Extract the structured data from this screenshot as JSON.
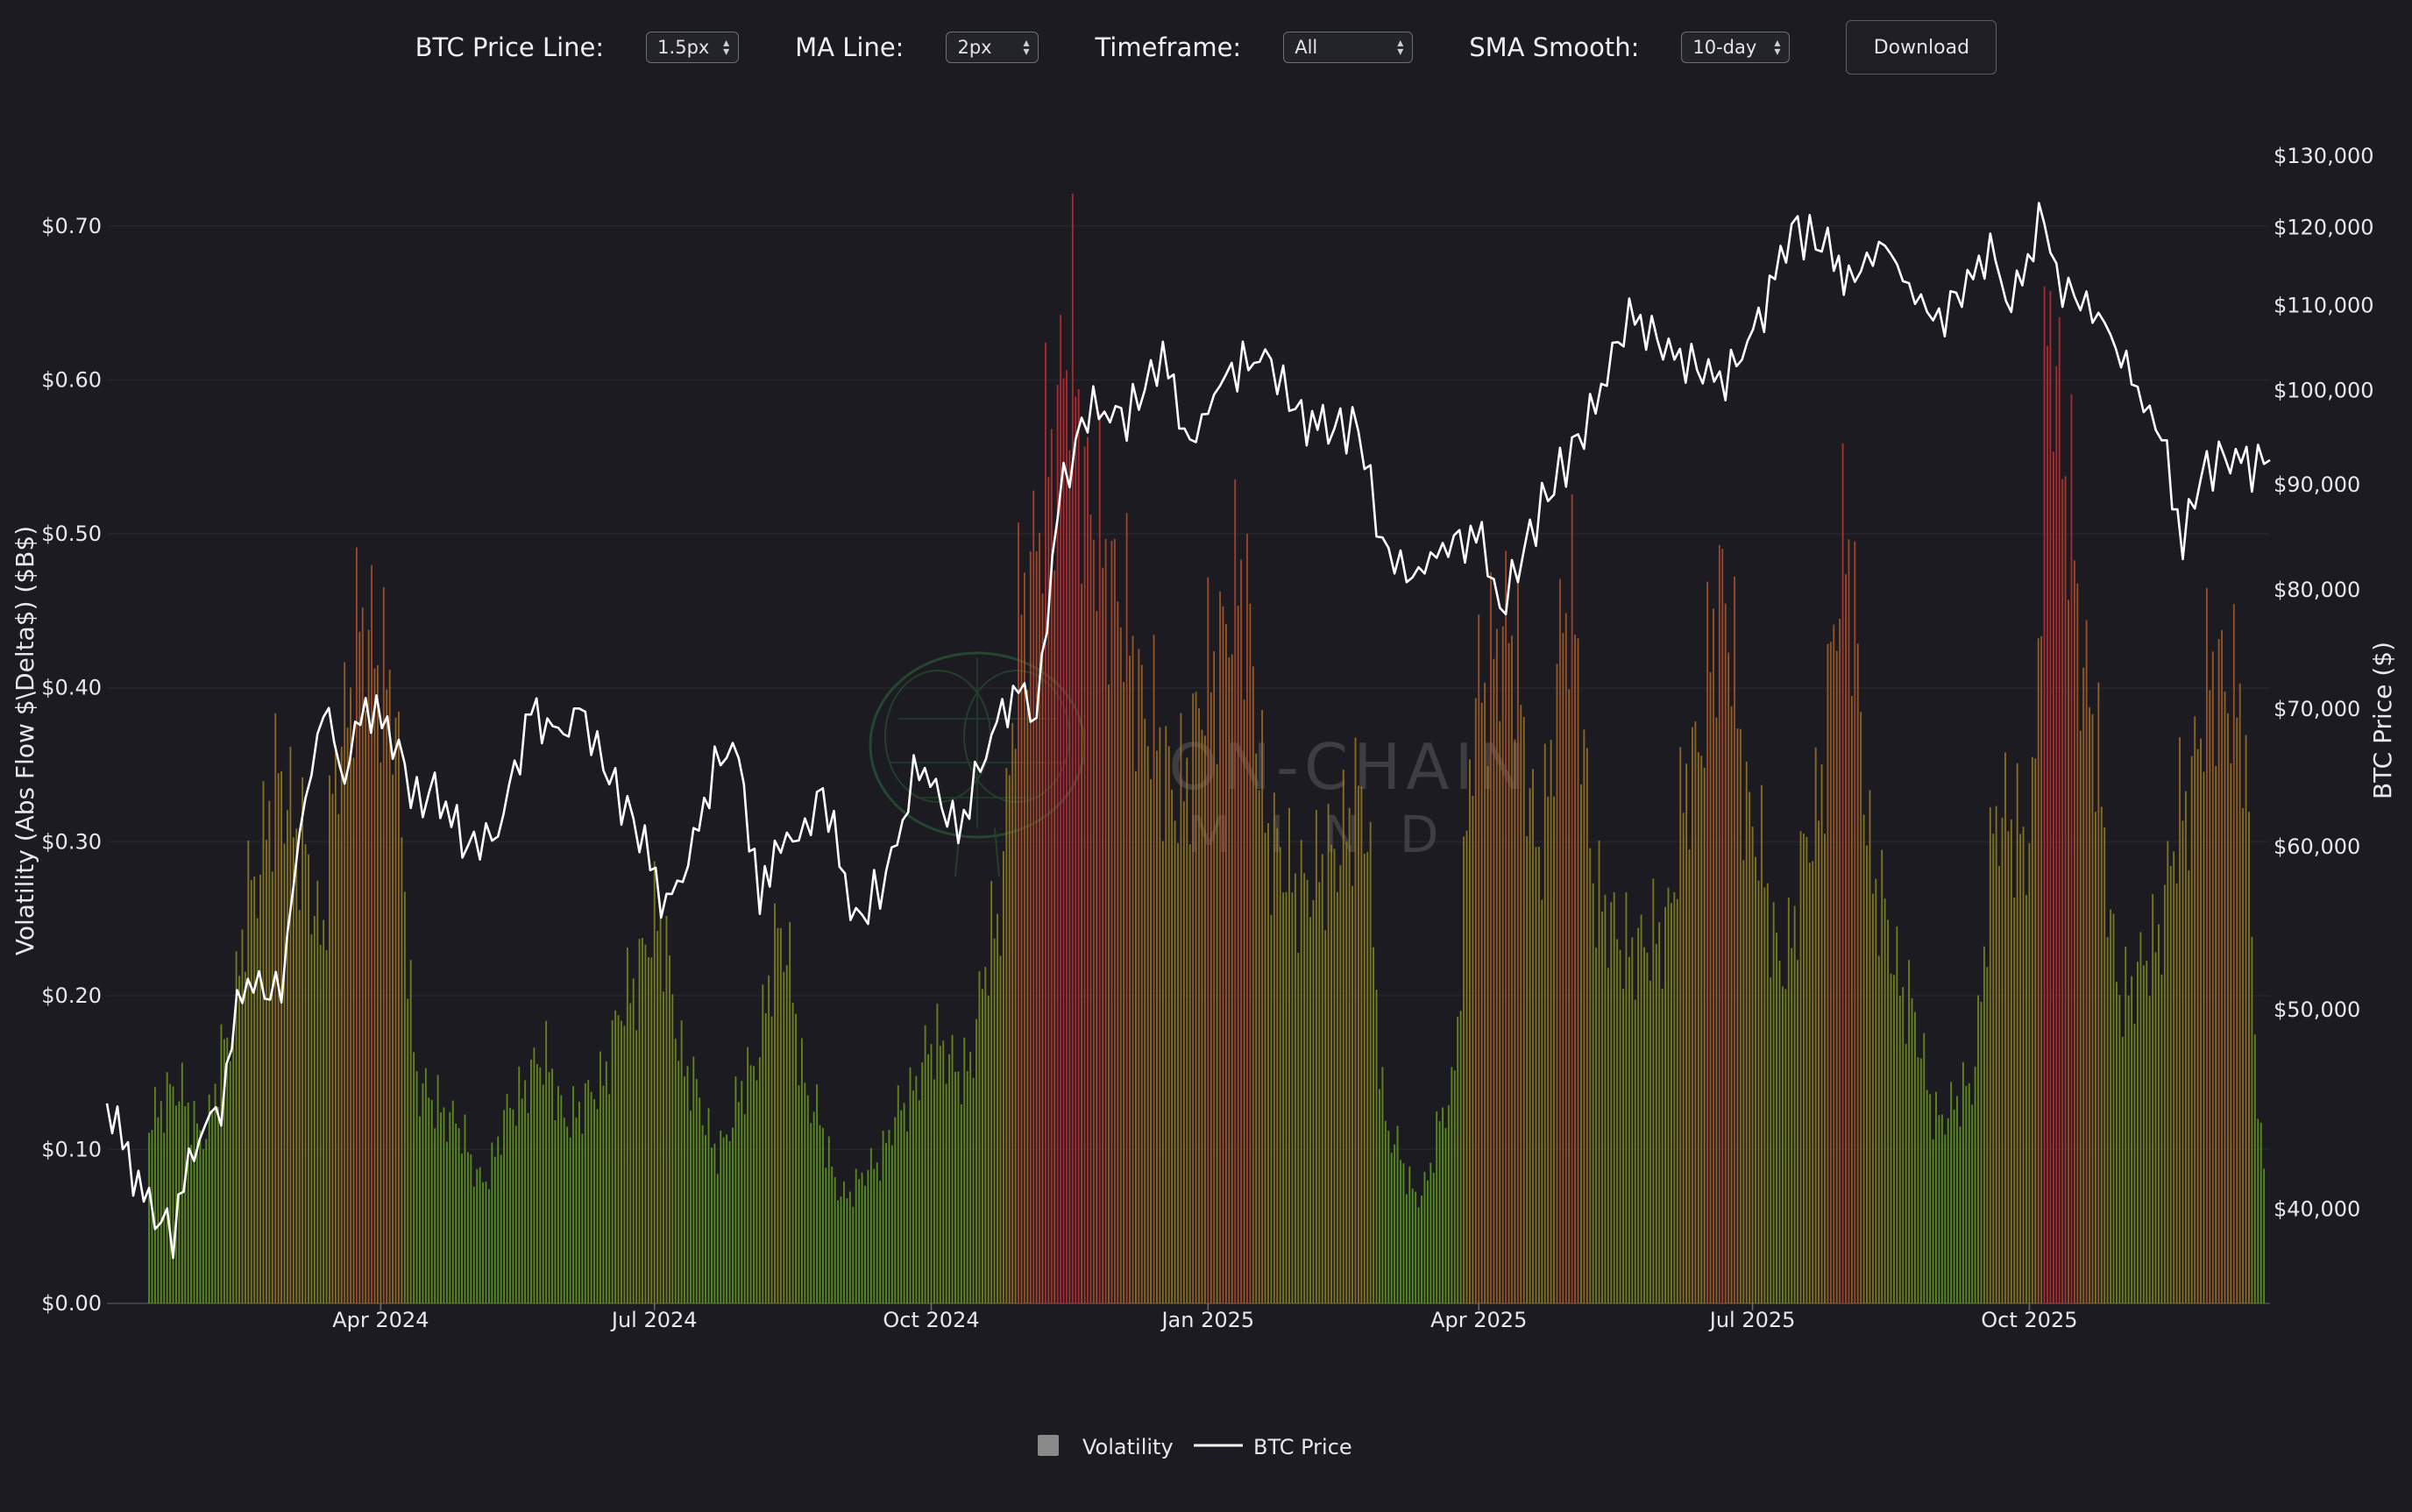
{
  "controls": {
    "price_line": {
      "label": "BTC Price Line:",
      "value": "1.5px"
    },
    "ma_line": {
      "label": "MA Line:",
      "value": "2px"
    },
    "timeframe": {
      "label": "Timeframe:",
      "value": "All"
    },
    "sma_smooth": {
      "label": "SMA Smooth:",
      "value": "10-day"
    },
    "download_label": "Download"
  },
  "watermark": {
    "line1": "ON-CHAIN",
    "line2": "MIND"
  },
  "colors": {
    "background": "#1b1b21",
    "price_line": "#ffffff",
    "bar_low": "#5f9e1e",
    "bar_mid": "#9a7a22",
    "bar_high": "#c42a33",
    "legend_swatch": "#8a8a8a"
  },
  "chart_data": {
    "type": "bar+line",
    "left_axis": {
      "label": "Volatility (Abs Flow $\\Delta$) ($B$)",
      "range": [
        0,
        0.7
      ],
      "ticks": [
        "$0.00",
        "$0.10",
        "$0.20",
        "$0.30",
        "$0.40",
        "$0.50",
        "$0.60",
        "$0.70"
      ]
    },
    "right_axis": {
      "label": "BTC Price ($)",
      "scale": "log",
      "range": [
        36000,
        130000
      ],
      "ticks": [
        "$40,000",
        "$50,000",
        "$60,000",
        "$70,000",
        "$80,000",
        "$90,000",
        "$100,000",
        "$110,000",
        "$120,000",
        "$130,000"
      ]
    },
    "x_axis": {
      "range": [
        "2024-01-01",
        "2025-12-20"
      ],
      "ticks": [
        "Apr 2024",
        "Jul 2024",
        "Oct 2024",
        "Jan 2025",
        "Apr 2025",
        "Jul 2025",
        "Oct 2025"
      ]
    },
    "grid": true,
    "legend": {
      "position": "bottom-center",
      "items": [
        "Volatility",
        "BTC Price"
      ]
    },
    "volatility_series": {
      "name": "Volatility",
      "x": [
        "2024-01-15",
        "2024-01-24",
        "2024-02-02",
        "2024-02-10",
        "2024-02-18",
        "2024-02-27",
        "2024-03-06",
        "2024-03-12",
        "2024-03-18",
        "2024-03-26",
        "2024-04-04",
        "2024-04-14",
        "2024-04-25",
        "2024-05-05",
        "2024-05-15",
        "2024-05-25",
        "2024-06-02",
        "2024-06-12",
        "2024-06-22",
        "2024-07-02",
        "2024-07-12",
        "2024-07-22",
        "2024-08-02",
        "2024-08-12",
        "2024-08-22",
        "2024-09-02",
        "2024-09-12",
        "2024-09-22",
        "2024-10-02",
        "2024-10-12",
        "2024-10-22",
        "2024-11-01",
        "2024-11-10",
        "2024-11-16",
        "2024-11-22",
        "2024-12-02",
        "2024-12-12",
        "2024-12-22",
        "2025-01-02",
        "2025-01-12",
        "2025-01-22",
        "2025-02-01",
        "2025-02-11",
        "2025-02-21",
        "2025-03-02",
        "2025-03-12",
        "2025-03-22",
        "2025-04-01",
        "2025-04-11",
        "2025-04-21",
        "2025-05-01",
        "2025-05-11",
        "2025-05-21",
        "2025-06-01",
        "2025-06-11",
        "2025-06-21",
        "2025-07-01",
        "2025-07-11",
        "2025-07-21",
        "2025-08-01",
        "2025-08-11",
        "2025-08-21",
        "2025-09-01",
        "2025-09-11",
        "2025-09-21",
        "2025-10-01",
        "2025-10-08",
        "2025-10-13",
        "2025-10-20",
        "2025-11-01",
        "2025-11-11",
        "2025-11-21",
        "2025-12-01",
        "2025-12-10",
        "2025-12-18"
      ],
      "values": [
        0.12,
        0.14,
        0.11,
        0.17,
        0.27,
        0.34,
        0.3,
        0.24,
        0.36,
        0.44,
        0.4,
        0.14,
        0.12,
        0.08,
        0.13,
        0.16,
        0.12,
        0.14,
        0.2,
        0.25,
        0.15,
        0.1,
        0.15,
        0.24,
        0.13,
        0.07,
        0.09,
        0.13,
        0.17,
        0.15,
        0.24,
        0.46,
        0.55,
        0.63,
        0.52,
        0.46,
        0.38,
        0.33,
        0.41,
        0.47,
        0.3,
        0.27,
        0.29,
        0.33,
        0.11,
        0.07,
        0.13,
        0.4,
        0.44,
        0.3,
        0.46,
        0.26,
        0.23,
        0.24,
        0.35,
        0.46,
        0.31,
        0.22,
        0.31,
        0.49,
        0.27,
        0.2,
        0.12,
        0.14,
        0.32,
        0.3,
        0.64,
        0.54,
        0.4,
        0.2,
        0.23,
        0.32,
        0.41,
        0.39,
        0.09
      ]
    },
    "price_series": {
      "name": "BTC Price",
      "x": [
        "2024-01-01",
        "2024-01-08",
        "2024-01-15",
        "2024-01-23",
        "2024-01-30",
        "2024-02-08",
        "2024-02-15",
        "2024-02-28",
        "2024-03-05",
        "2024-03-13",
        "2024-03-20",
        "2024-03-27",
        "2024-04-05",
        "2024-04-13",
        "2024-04-19",
        "2024-04-30",
        "2024-05-10",
        "2024-05-21",
        "2024-05-30",
        "2024-06-06",
        "2024-06-18",
        "2024-06-26",
        "2024-07-05",
        "2024-07-14",
        "2024-07-21",
        "2024-07-29",
        "2024-08-05",
        "2024-08-10",
        "2024-08-20",
        "2024-08-26",
        "2024-09-06",
        "2024-09-16",
        "2024-09-27",
        "2024-10-10",
        "2024-10-21",
        "2024-10-30",
        "2024-11-05",
        "2024-11-12",
        "2024-11-22",
        "2024-12-05",
        "2024-12-17",
        "2024-12-26",
        "2025-01-07",
        "2025-01-20",
        "2025-02-01",
        "2025-02-10",
        "2025-02-20",
        "2025-02-28",
        "2025-03-10",
        "2025-03-20",
        "2025-04-02",
        "2025-04-08",
        "2025-04-22",
        "2025-05-08",
        "2025-05-21",
        "2025-06-05",
        "2025-06-22",
        "2025-07-03",
        "2025-07-14",
        "2025-07-28",
        "2025-08-02",
        "2025-08-14",
        "2025-08-22",
        "2025-09-01",
        "2025-09-18",
        "2025-09-25",
        "2025-10-06",
        "2025-10-10",
        "2025-10-20",
        "2025-10-28",
        "2025-11-04",
        "2025-11-14",
        "2025-11-21",
        "2025-11-27",
        "2025-12-05",
        "2025-12-14",
        "2025-12-20"
      ],
      "values": [
        45000,
        42500,
        40000,
        39000,
        43000,
        45000,
        51500,
        51000,
        61000,
        70000,
        65000,
        70500,
        68000,
        63000,
        64000,
        60000,
        61000,
        70000,
        68000,
        70000,
        64000,
        61000,
        56000,
        60000,
        66000,
        67000,
        56000,
        60000,
        61000,
        64000,
        55000,
        58000,
        66000,
        61000,
        68000,
        72000,
        69000,
        88000,
        98000,
        97000,
        104000,
        94000,
        102000,
        104000,
        97000,
        96000,
        96000,
        84000,
        81000,
        84000,
        85000,
        78000,
        88000,
        97000,
        109000,
        104000,
        101000,
        108000,
        120000,
        117000,
        113000,
        118000,
        112000,
        108000,
        117000,
        110000,
        122000,
        113000,
        110000,
        107000,
        101000,
        95000,
        84500,
        91000,
        93000,
        92000,
        92500
      ]
    }
  }
}
